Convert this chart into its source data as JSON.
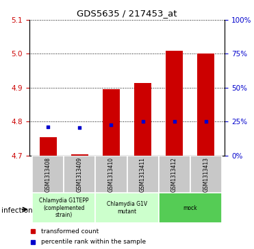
{
  "title": "GDS5635 / 217453_at",
  "samples": [
    "GSM1313408",
    "GSM1313409",
    "GSM1313410",
    "GSM1313411",
    "GSM1313412",
    "GSM1313413"
  ],
  "bar_values": [
    4.755,
    4.703,
    4.895,
    4.915,
    5.01,
    5.0
  ],
  "blue_values": [
    4.785,
    4.783,
    4.79,
    4.8,
    4.8,
    4.8
  ],
  "ylim_left": [
    4.7,
    5.1
  ],
  "ylim_right": [
    0,
    100
  ],
  "yticks_left": [
    4.7,
    4.8,
    4.9,
    5.0,
    5.1
  ],
  "yticks_right": [
    0,
    25,
    50,
    75,
    100
  ],
  "bar_color": "#CC0000",
  "blue_color": "#0000CC",
  "bar_bottom": 4.7,
  "groups_info": [
    {
      "start": 0,
      "end": 1,
      "label": "Chlamydia G1TEPP\n(complemented\nstrain)",
      "color": "#ccffcc"
    },
    {
      "start": 2,
      "end": 3,
      "label": "Chlamydia G1V\nmutant",
      "color": "#ccffcc"
    },
    {
      "start": 4,
      "end": 5,
      "label": "mock",
      "color": "#55cc55"
    }
  ],
  "infection_label": "infection",
  "legend_items": [
    {
      "color": "#CC0000",
      "label": "transformed count"
    },
    {
      "color": "#0000CC",
      "label": "percentile rank within the sample"
    }
  ],
  "tick_color_left": "#CC0000",
  "tick_color_right": "#0000CC",
  "label_bg": "#c8c8c8",
  "label_edge": "#ffffff"
}
